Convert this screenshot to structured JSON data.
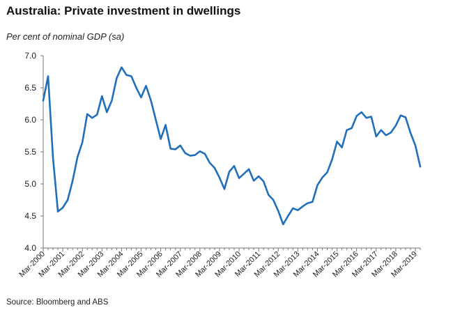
{
  "title": "Australia: Private investment in dwellings",
  "subtitle": "Per cent of nominal GDP (sa)",
  "source": "Source: Bloomberg and ABS",
  "chart_data": {
    "type": "line",
    "title": "Australia: Private investment in dwellings",
    "ylabel": "Per cent of nominal GDP (sa)",
    "xlabel": "",
    "ylim": [
      4.0,
      7.0
    ],
    "yticks": [
      "4.0",
      "4.5",
      "5.0",
      "5.5",
      "6.0",
      "6.5",
      "7.0"
    ],
    "xticks": [
      "Mar-2000",
      "Mar-2001",
      "Mar-2002",
      "Mar-2003",
      "Mar-2004",
      "Mar-2005",
      "Mar-2006",
      "Mar-2007",
      "Mar-2008",
      "Mar-2009",
      "Mar-2010",
      "Mar-2011",
      "Mar-2012",
      "Mar-2013",
      "Mar-2014",
      "Mar-2015",
      "Mar-2016",
      "Mar-2017",
      "Mar-2018",
      "Mar-2019"
    ],
    "grid": false,
    "legend": "none",
    "line_color": "#1f6fba",
    "series": [
      {
        "values": [
          6.3,
          6.68,
          5.4,
          4.57,
          4.63,
          4.75,
          5.05,
          5.42,
          5.65,
          6.09,
          6.03,
          6.08,
          6.37,
          6.12,
          6.3,
          6.65,
          6.82,
          6.7,
          6.68,
          6.5,
          6.35,
          6.53,
          6.3,
          6.0,
          5.7,
          5.92,
          5.55,
          5.54,
          5.6,
          5.48,
          5.44,
          5.45,
          5.51,
          5.47,
          5.33,
          5.25,
          5.1,
          4.92,
          5.19,
          5.28,
          5.09,
          5.16,
          5.23,
          5.05,
          5.12,
          5.04,
          4.83,
          4.75,
          4.58,
          4.37,
          4.5,
          4.62,
          4.59,
          4.65,
          4.7,
          4.72,
          4.98,
          5.1,
          5.18,
          5.38,
          5.66,
          5.57,
          5.84,
          5.87,
          6.06,
          6.12,
          6.03,
          6.05,
          5.74,
          5.84,
          5.76,
          5.8,
          5.91,
          6.07,
          6.04,
          5.8,
          5.6,
          5.27
        ]
      }
    ]
  }
}
